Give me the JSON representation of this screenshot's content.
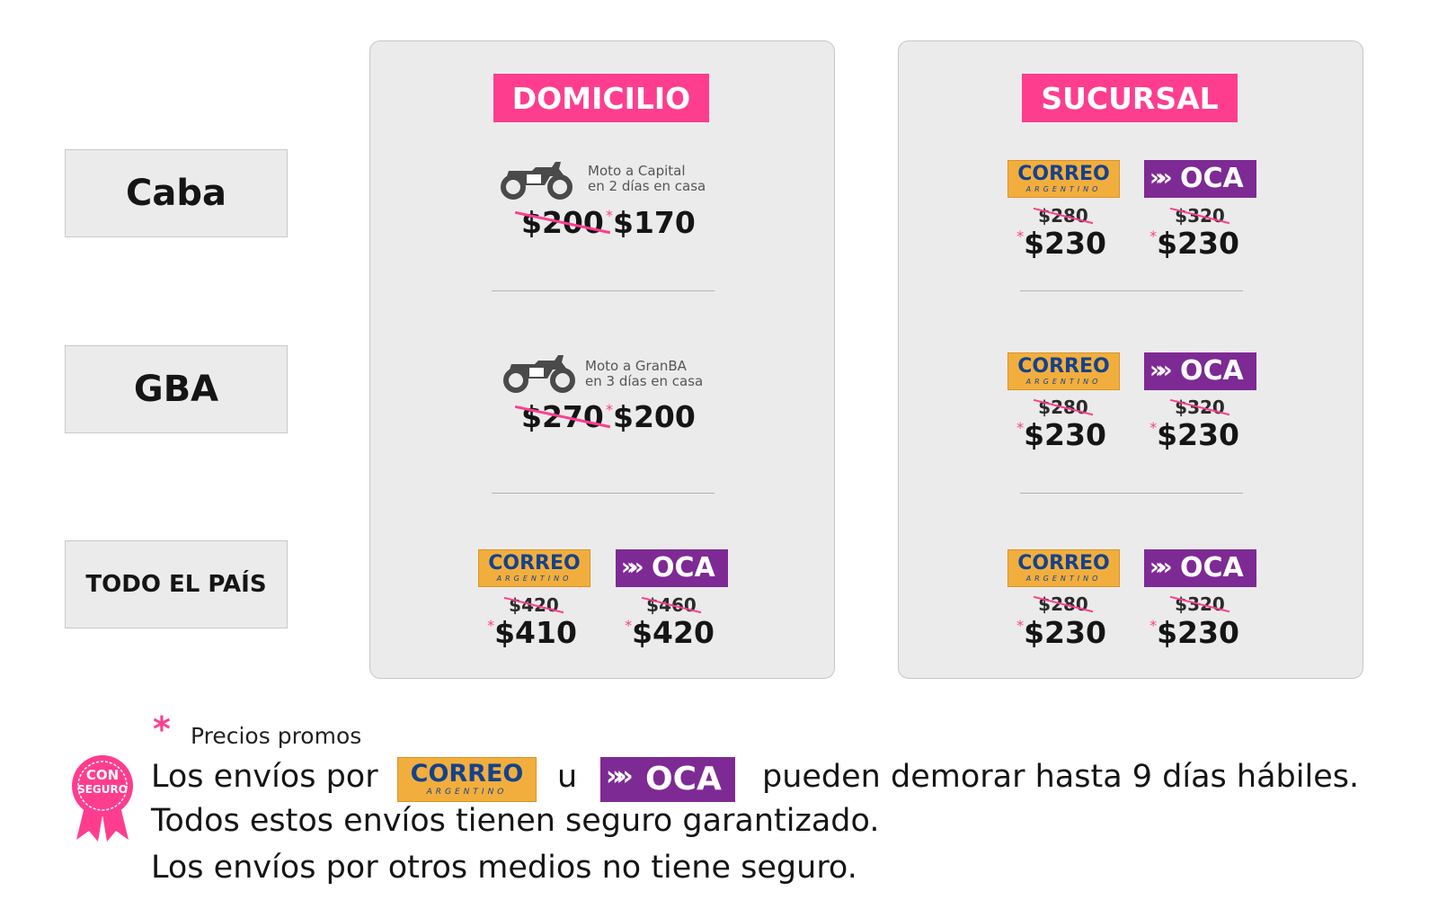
{
  "regions": [
    "Caba",
    "GBA",
    "TODO EL PAÍS"
  ],
  "domicilio": {
    "title": "DOMICILIO",
    "caba": {
      "line1": "Moto a Capital",
      "line2": "en 2 días en casa",
      "old": "$200",
      "new": "$170"
    },
    "gba": {
      "line1": "Moto a GranBA",
      "line2": "en 3 días en casa",
      "old": "$270",
      "new": "$200"
    },
    "pais": {
      "correo_old": "$420",
      "correo_new": "$410",
      "oca_old": "$460",
      "oca_new": "$420"
    }
  },
  "sucursal": {
    "title": "SUCURSAL",
    "rows": [
      {
        "correo_old": "$280",
        "correo_new": "$230",
        "oca_old": "$320",
        "oca_new": "$230"
      },
      {
        "correo_old": "$280",
        "correo_new": "$230",
        "oca_old": "$320",
        "oca_new": "$230"
      },
      {
        "correo_old": "$280",
        "correo_new": "$230",
        "oca_old": "$320",
        "oca_new": "$230"
      }
    ]
  },
  "logos": {
    "correo_main": "CORREO",
    "correo_sub": "ARGENTINO",
    "oca_chevrons": "»",
    "oca_word": "OCA"
  },
  "asterisk": "*",
  "footer": {
    "promo_note": "Precios promos",
    "badge_line1": "CON",
    "badge_line2": "SEGURO",
    "line1_a": "Los envíos por",
    "line1_u": "u",
    "line1_b": "pueden demorar hasta 9 días hábiles.",
    "line2": "Todos estos envíos tienen seguro garantizado.",
    "line3": "Los envíos por otros medios no tiene seguro."
  },
  "colors": {
    "accent": "#ff3d8e",
    "correo_bg": "#f2ae3d",
    "correo_text": "#15428c",
    "oca_bg": "#7e2a94",
    "panel_bg": "#ebebeb"
  },
  "icons": [
    "motorcycle-icon",
    "asterisk-icon",
    "ribbon-badge-icon"
  ]
}
